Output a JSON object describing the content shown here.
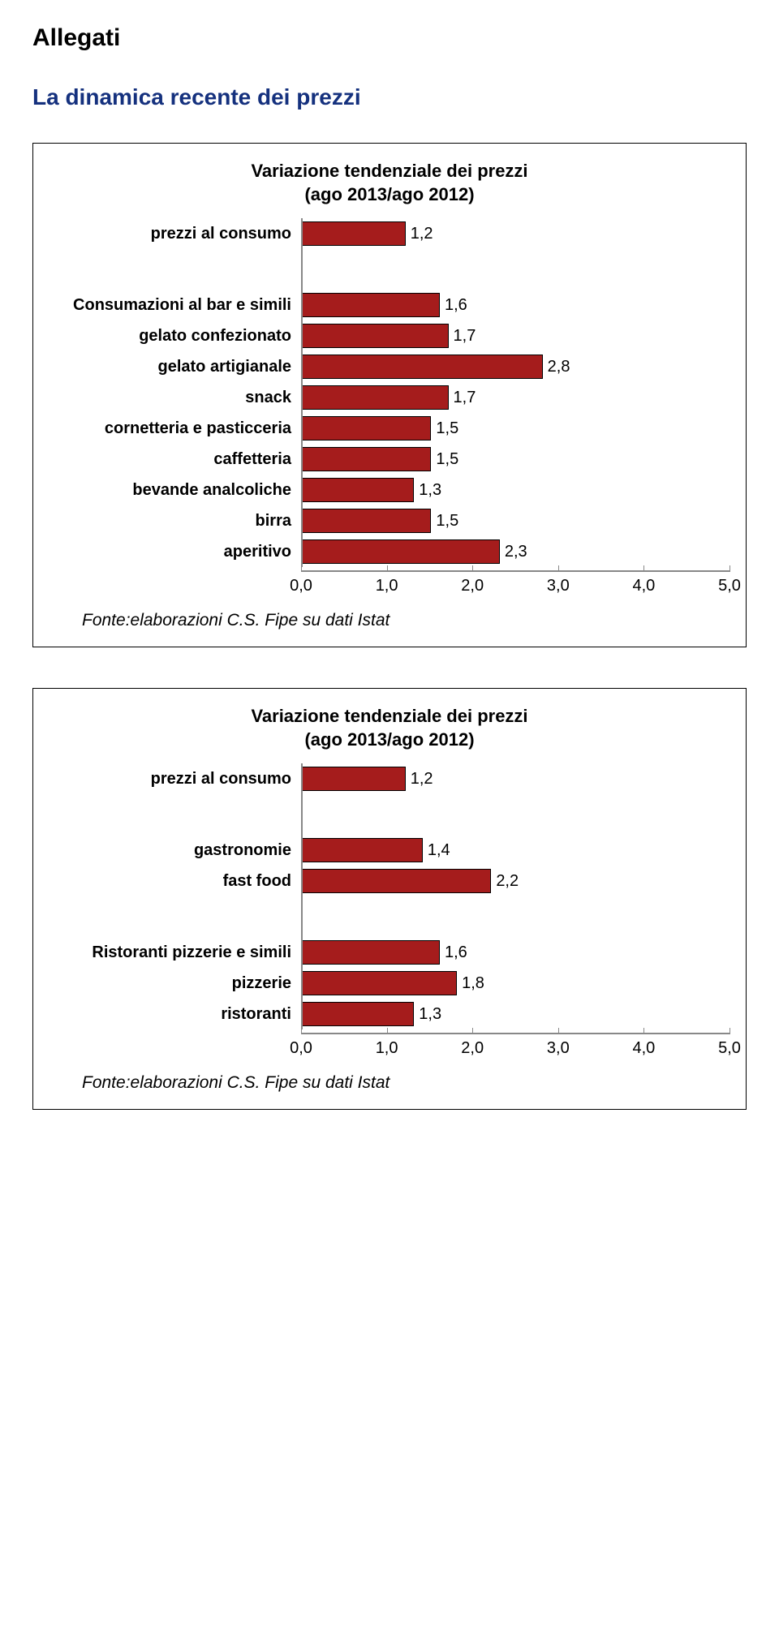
{
  "header": {
    "allegati": "Allegati",
    "section_title": "La dinamica recente dei prezzi"
  },
  "chart1": {
    "type": "bar",
    "title_line1": "Variazione tendenziale dei prezzi",
    "title_line2": "(ago 2013/ago 2012)",
    "xmin": 0.0,
    "xmax": 5.0,
    "xticks": [
      "0,0",
      "1,0",
      "2,0",
      "3,0",
      "4,0",
      "5,0"
    ],
    "bar_color": "#a51c1c",
    "groups": [
      {
        "rows": [
          {
            "label": "prezzi al consumo",
            "value": 1.2,
            "display": "1,2"
          }
        ]
      },
      {
        "rows": [
          {
            "label": "Consumazioni al bar e simili",
            "value": 1.6,
            "display": "1,6"
          },
          {
            "label": "gelato confezionato",
            "value": 1.7,
            "display": "1,7"
          },
          {
            "label": "gelato artigianale",
            "value": 2.8,
            "display": "2,8"
          },
          {
            "label": "snack",
            "value": 1.7,
            "display": "1,7"
          },
          {
            "label": "cornetteria e pasticceria",
            "value": 1.5,
            "display": "1,5"
          },
          {
            "label": "caffetteria",
            "value": 1.5,
            "display": "1,5"
          },
          {
            "label": "bevande analcoliche",
            "value": 1.3,
            "display": "1,3"
          },
          {
            "label": "birra",
            "value": 1.5,
            "display": "1,5"
          },
          {
            "label": "aperitivo",
            "value": 2.3,
            "display": "2,3"
          }
        ]
      }
    ],
    "source": "Fonte:elaborazioni C.S. Fipe su dati Istat"
  },
  "chart2": {
    "type": "bar",
    "title_line1": "Variazione tendenziale dei prezzi",
    "title_line2": "(ago 2013/ago 2012)",
    "xmin": 0.0,
    "xmax": 5.0,
    "xticks": [
      "0,0",
      "1,0",
      "2,0",
      "3,0",
      "4,0",
      "5,0"
    ],
    "bar_color": "#a51c1c",
    "groups": [
      {
        "rows": [
          {
            "label": "prezzi al consumo",
            "value": 1.2,
            "display": "1,2"
          }
        ]
      },
      {
        "rows": [
          {
            "label": "gastronomie",
            "value": 1.4,
            "display": "1,4"
          },
          {
            "label": "fast food",
            "value": 2.2,
            "display": "2,2"
          }
        ]
      },
      {
        "rows": [
          {
            "label": "Ristoranti pizzerie e simili",
            "value": 1.6,
            "display": "1,6"
          },
          {
            "label": "pizzerie",
            "value": 1.8,
            "display": "1,8"
          },
          {
            "label": "ristoranti",
            "value": 1.3,
            "display": "1,3"
          }
        ]
      }
    ],
    "source": "Fonte:elaborazioni C.S. Fipe su dati Istat"
  }
}
